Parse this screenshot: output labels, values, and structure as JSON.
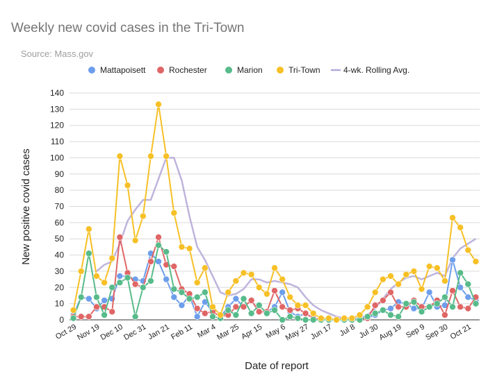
{
  "chart_data": {
    "type": "line",
    "title": "Weekly new covid cases in the Tri-Town",
    "subtitle": "Source: Mass.gov",
    "xlabel": "Date of report",
    "ylabel": "New positive covid cases",
    "ylim": [
      0,
      140
    ],
    "yticks": [
      0,
      10,
      20,
      30,
      40,
      50,
      60,
      70,
      80,
      90,
      100,
      110,
      120,
      130,
      140
    ],
    "grid": true,
    "legend_position": "top",
    "x_tick_labels": [
      "Oct 29",
      "Nov 19",
      "Dec 10",
      "Dec 31",
      "Jan 21",
      "Feb 11",
      "Mar 4",
      "Mar 25",
      "Apr 15",
      "May 6",
      "May 27",
      "Jun 17",
      "Jul 8",
      "Jul 30",
      "Aug 19",
      "Sep 9",
      "Sep 30",
      "Oct 21"
    ],
    "x_tick_index": [
      0,
      3,
      6,
      9,
      12,
      15,
      18,
      21,
      24,
      27,
      30,
      33,
      36,
      39,
      42,
      45,
      48,
      51
    ],
    "n_points": 53,
    "series": [
      {
        "name": "Mattapoisett",
        "color": "#6d9eeb",
        "values": [
          3,
          14,
          13,
          7,
          12,
          13,
          27,
          27,
          25,
          24,
          41,
          36,
          25,
          14,
          9,
          15,
          2,
          11,
          5,
          2,
          8,
          13,
          8,
          12,
          5,
          5,
          8,
          17,
          5,
          2,
          4,
          1,
          0,
          0,
          0,
          0,
          0,
          0,
          1,
          3,
          6,
          7,
          11,
          10,
          7,
          7,
          17,
          8,
          9,
          37,
          20,
          14,
          12
        ]
      },
      {
        "name": "Rochester",
        "color": "#e06666",
        "values": [
          2,
          2,
          2,
          8,
          8,
          5,
          51,
          29,
          22,
          20,
          36,
          51,
          34,
          33,
          19,
          16,
          7,
          4,
          5,
          2,
          3,
          8,
          8,
          12,
          5,
          5,
          18,
          8,
          6,
          7,
          4,
          1,
          0,
          0,
          0,
          0,
          0,
          0,
          1,
          9,
          12,
          17,
          8,
          8,
          12,
          8,
          8,
          12,
          3,
          18,
          8,
          7,
          14
        ]
      },
      {
        "name": "Marion",
        "color": "#57bb8a",
        "values": [
          1,
          14,
          41,
          14,
          3,
          20,
          23,
          26,
          2,
          20,
          24,
          46,
          42,
          19,
          17,
          13,
          14,
          17,
          2,
          1,
          6,
          3,
          13,
          4,
          9,
          4,
          6,
          0,
          2,
          1,
          0,
          0,
          0,
          0,
          0,
          0,
          0,
          0,
          2,
          4,
          6,
          3,
          2,
          10,
          11,
          5,
          8,
          10,
          14,
          8,
          29,
          22,
          10
        ]
      },
      {
        "name": "Tri-Town",
        "color": "#f6c026",
        "values": [
          6,
          30,
          56,
          27,
          23,
          38,
          101,
          83,
          49,
          64,
          101,
          133,
          101,
          66,
          45,
          44,
          23,
          32,
          8,
          3,
          17,
          24,
          29,
          28,
          20,
          16,
          32,
          25,
          14,
          9,
          9,
          4,
          1,
          1,
          0,
          1,
          1,
          3,
          8,
          17,
          25,
          27,
          22,
          28,
          30,
          19,
          33,
          32,
          24,
          63,
          57,
          43,
          36
        ]
      },
      {
        "name": "4-wk. Rolling Avg.",
        "color": "#b4a7d6",
        "values": [
          null,
          null,
          null,
          30,
          34,
          36,
          47,
          61,
          68,
          74,
          74,
          87,
          100,
          100,
          86,
          64,
          45,
          37,
          27,
          17,
          15,
          16,
          19,
          25,
          25,
          23,
          24,
          23,
          22,
          20,
          14,
          9,
          6,
          4,
          2,
          1,
          1,
          1,
          3,
          7,
          13,
          19,
          23,
          26,
          27,
          25,
          27,
          29,
          27,
          38,
          44,
          47,
          50
        ]
      }
    ]
  }
}
